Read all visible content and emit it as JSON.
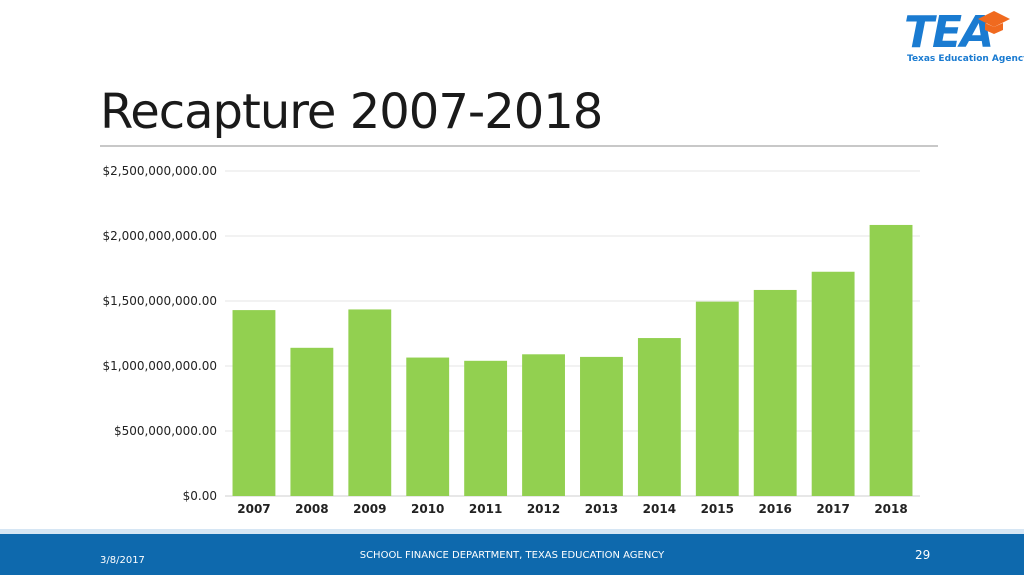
{
  "logo": {
    "text": "TEA",
    "subtitle": "Texas Education Agency",
    "accent_color": "#f06a1f",
    "brand_color": "#1a7bd1"
  },
  "slide": {
    "title": "Recapture 2007-2018"
  },
  "footer": {
    "date": "3/8/2017",
    "center_text": "SCHOOL FINANCE DEPARTMENT, TEXAS EDUCATION AGENCY",
    "page_number": "29"
  },
  "chart_data": {
    "type": "bar",
    "title": "",
    "xlabel": "",
    "ylabel": "",
    "categories": [
      "2007",
      "2008",
      "2009",
      "2010",
      "2011",
      "2012",
      "2013",
      "2014",
      "2015",
      "2016",
      "2017",
      "2018"
    ],
    "values": [
      1430000000,
      1140000000,
      1435000000,
      1065000000,
      1040000000,
      1090000000,
      1070000000,
      1215000000,
      1495000000,
      1585000000,
      1725000000,
      2085000000
    ],
    "ylim": [
      0,
      2500000000
    ],
    "yticks": [
      0,
      500000000,
      1000000000,
      1500000000,
      2000000000,
      2500000000
    ],
    "ytick_labels": [
      "$0.00",
      "$500,000,000.00",
      "$1,000,000,000.00",
      "$1,500,000,000.00",
      "$2,000,000,000.00",
      "$2,500,000,000.00"
    ],
    "grid": true,
    "legend": "none",
    "bar_color": "#92d050"
  }
}
